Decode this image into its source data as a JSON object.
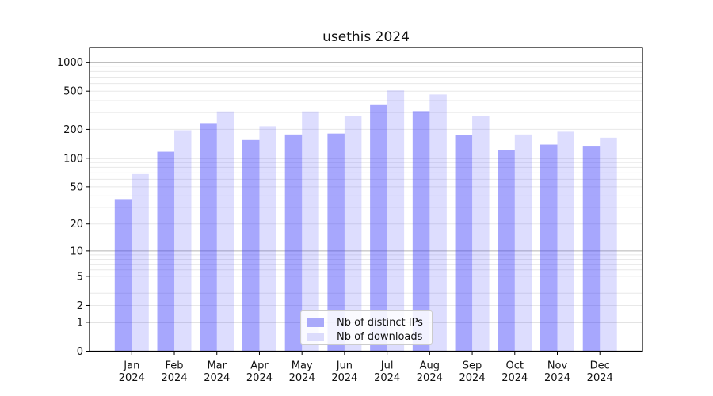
{
  "figure": {
    "title": "usethis 2024"
  },
  "chart_data": {
    "type": "bar",
    "title": "usethis 2024",
    "year": "2024",
    "categories": [
      "Jan",
      "Feb",
      "Mar",
      "Apr",
      "May",
      "Jun",
      "Jul",
      "Aug",
      "Sep",
      "Oct",
      "Nov",
      "Dec"
    ],
    "series": [
      {
        "name": "Nb of distinct IPs",
        "swatch_color": "#a9a9fa",
        "fill": "rgba(51,51,250,0.43)",
        "values": [
          37,
          117,
          233,
          155,
          177,
          181,
          365,
          310,
          176,
          121,
          139,
          135
        ]
      },
      {
        "name": "Nb of downloads",
        "swatch_color": "#dcdcfc",
        "fill": "rgba(51,51,250,0.17)",
        "values": [
          68,
          196,
          308,
          216,
          308,
          275,
          509,
          462,
          274,
          177,
          189,
          164
        ]
      }
    ],
    "xlabel": "",
    "ylabel": "",
    "y_axis": {
      "scale": "log10(1+v)",
      "ylim": [
        0,
        1430
      ],
      "ticks": [
        0,
        1,
        2,
        5,
        10,
        20,
        50,
        100,
        200,
        500,
        1000
      ],
      "major_gridlines": [
        1,
        10,
        100,
        1000
      ],
      "minor_gridlines": [
        2,
        3,
        4,
        5,
        6,
        7,
        8,
        9,
        20,
        30,
        40,
        50,
        60,
        70,
        80,
        90,
        200,
        300,
        400,
        500,
        600,
        700,
        800,
        900
      ]
    },
    "legend_position": "lower center",
    "colors": {
      "grid_major": "#b5b5b5",
      "grid_minor": "#e8e8e8",
      "spine": "#000000",
      "text": "#111111",
      "background": "#ffffff"
    }
  }
}
